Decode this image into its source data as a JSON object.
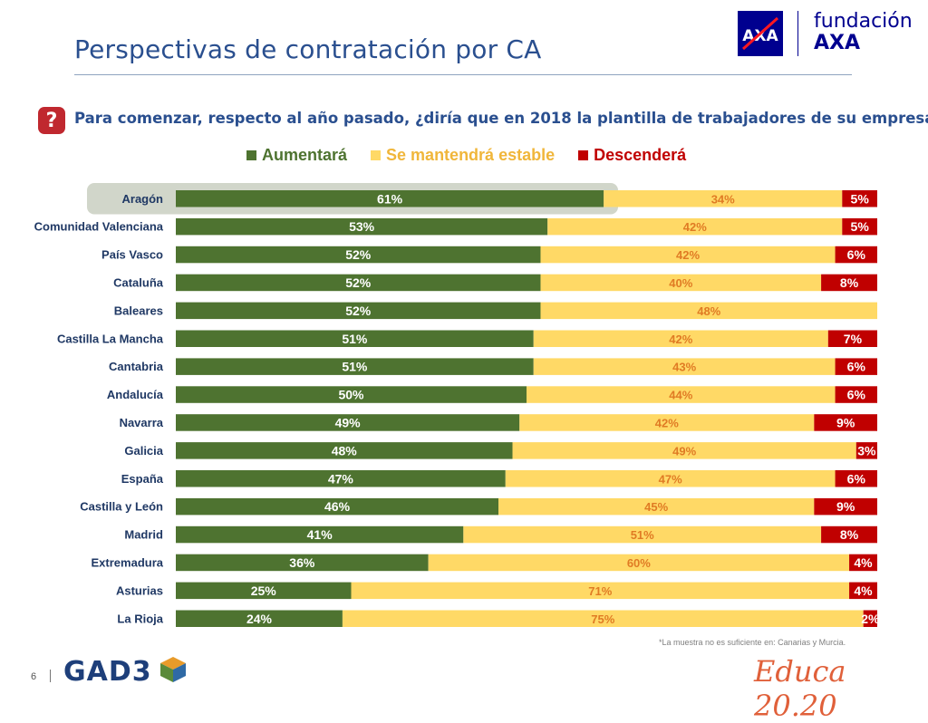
{
  "header": {
    "title": "Perspectivas de contratación por CA",
    "foundation_line1": "fundación",
    "foundation_line2": "AXA",
    "axa_logo_text": "AXA"
  },
  "question": {
    "icon": "question-mark-icon",
    "text": "Para comenzar, respecto al año pasado, ¿diría que en 2018 la plantilla de trabajadores de su empresa…?"
  },
  "colors": {
    "aumentara": "#4e7330",
    "estable": "#ffd966",
    "descendera": "#c00000",
    "estable_label": "#e07b24",
    "title": "#2a4f8f"
  },
  "legend": [
    {
      "label": "Aumentará",
      "color": "#4e7330"
    },
    {
      "label": "Se mantendrá estable",
      "color": "#ffd966"
    },
    {
      "label": "Descenderá",
      "color": "#c00000"
    }
  ],
  "chart_data": {
    "type": "bar",
    "orientation": "horizontal",
    "stacked": true,
    "stack_total": 100,
    "highlighted_category": "Aragón",
    "categories": [
      "Aragón",
      "Comunidad Valenciana",
      "País Vasco",
      "Cataluña",
      "Baleares",
      "Castilla La Mancha",
      "Cantabria",
      "Andalucía",
      "Navarra",
      "Galicia",
      "España",
      "Castilla y León",
      "Madrid",
      "Extremadura",
      "Asturias",
      "La Rioja"
    ],
    "series": [
      {
        "name": "Aumentará",
        "values": [
          61,
          53,
          52,
          52,
          52,
          51,
          51,
          50,
          49,
          48,
          47,
          46,
          41,
          36,
          25,
          24
        ]
      },
      {
        "name": "Se mantendrá estable",
        "values": [
          34,
          42,
          42,
          40,
          48,
          42,
          43,
          44,
          42,
          49,
          47,
          45,
          51,
          60,
          71,
          75
        ]
      },
      {
        "name": "Descenderá",
        "values": [
          5,
          5,
          6,
          8,
          null,
          7,
          6,
          6,
          9,
          3,
          6,
          9,
          8,
          4,
          4,
          2
        ]
      }
    ]
  },
  "footnote": "*La  muestra  no es suficiente en: Canarias y Murcia.",
  "footer": {
    "page_number": "6",
    "gad3_logo": "GAD3",
    "educa_logo": "Educa 20.20"
  }
}
